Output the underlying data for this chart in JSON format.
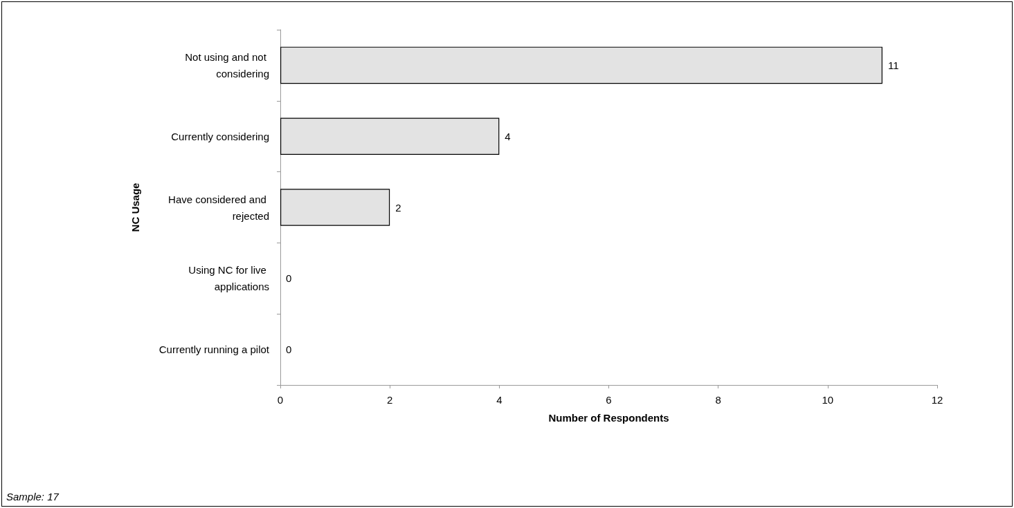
{
  "chart_data": {
    "type": "bar",
    "orientation": "horizontal",
    "xlabel": "Number of Respondents",
    "ylabel": "NC Usage",
    "categories": [
      "Not using and not considering",
      "Currently considering",
      "Have considered and rejected",
      "Using NC for live applications",
      "Currently running a pilot"
    ],
    "values": [
      11,
      4,
      2,
      0,
      0
    ],
    "color": "#e3e3e3",
    "xlim": [
      0,
      12
    ],
    "xticks": [
      0,
      2,
      4,
      6,
      8,
      10,
      12
    ],
    "grid": false,
    "data_labels": true,
    "annotations": [
      "Sample: 17"
    ]
  }
}
